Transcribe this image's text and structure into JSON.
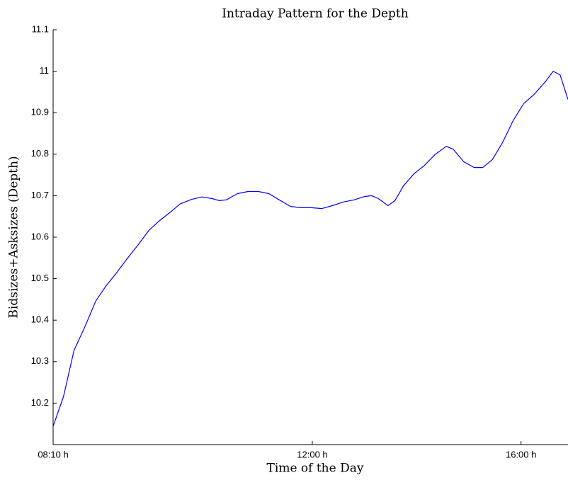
{
  "chart_data": {
    "type": "line",
    "title": "Intraday Pattern for the Depth",
    "x_label": "Time of the Day",
    "y_label": "Bidsizes+Asksizes (Depth)",
    "x": [
      0,
      12,
      24,
      37,
      49,
      61,
      73,
      85,
      98,
      110,
      122,
      134,
      146,
      159,
      171,
      183,
      191,
      199,
      212,
      224,
      236,
      248,
      260,
      273,
      285,
      297,
      309,
      321,
      334,
      346,
      358,
      366,
      374,
      385,
      393,
      403,
      415,
      427,
      439,
      452,
      460,
      472,
      484,
      494,
      505,
      517,
      529,
      541,
      553,
      566,
      575,
      583,
      592
    ],
    "series": [
      {
        "name": "Depth",
        "color": "#0000ff",
        "values": [
          10.144,
          10.216,
          10.327,
          10.386,
          10.446,
          10.483,
          10.514,
          10.548,
          10.582,
          10.616,
          10.639,
          10.659,
          10.68,
          10.691,
          10.697,
          10.693,
          10.688,
          10.69,
          10.705,
          10.71,
          10.71,
          10.705,
          10.69,
          10.674,
          10.671,
          10.671,
          10.669,
          10.676,
          10.685,
          10.69,
          10.698,
          10.7,
          10.693,
          10.676,
          10.688,
          10.724,
          10.753,
          10.773,
          10.799,
          10.819,
          10.812,
          10.782,
          10.768,
          10.768,
          10.787,
          10.829,
          10.881,
          10.922,
          10.944,
          10.975,
          11.0,
          10.991,
          10.932
        ]
      }
    ],
    "xlim": [
      0,
      592
    ],
    "xticks": [
      {
        "value": 0,
        "label": "08:10 h"
      },
      {
        "value": 298,
        "label": "12:00 h"
      },
      {
        "value": 538,
        "label": "16:00 h"
      }
    ],
    "ylim": [
      10.1,
      11.1
    ],
    "yticks": [
      10.2,
      10.3,
      10.4,
      10.5,
      10.6,
      10.7,
      10.8,
      10.9,
      11,
      11.1
    ],
    "grid": false
  }
}
